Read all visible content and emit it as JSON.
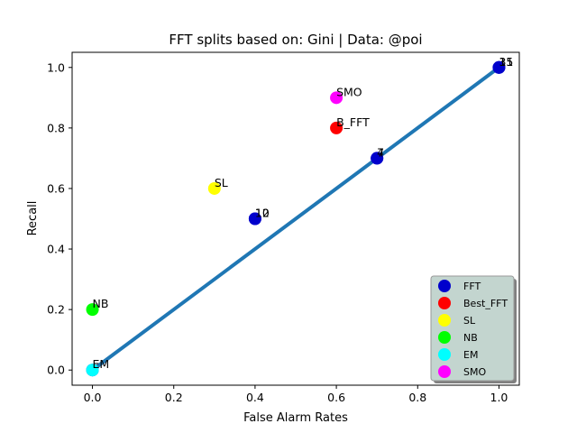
{
  "chart_data": {
    "type": "scatter",
    "title": "FFT splits based on: Gini  |  Data: @poi",
    "xlabel": "False Alarm Rates",
    "ylabel": "Recall",
    "xlim": [
      -0.05,
      1.05
    ],
    "ylim": [
      -0.05,
      1.05
    ],
    "x_ticks": [
      "0.0",
      "0.2",
      "0.4",
      "0.6",
      "0.8",
      "1.0"
    ],
    "y_ticks": [
      "0.0",
      "0.2",
      "0.4",
      "0.6",
      "0.8",
      "1.0"
    ],
    "grid": false,
    "line": {
      "x": [
        0,
        1
      ],
      "y": [
        0,
        1
      ],
      "color": "#1f77b4"
    },
    "series": [
      {
        "name": "FFT",
        "color": "#0000cc",
        "points": [
          {
            "x": 0.0,
            "y": 0.0,
            "label": ""
          },
          {
            "x": 0.4,
            "y": 0.5,
            "label": "10"
          },
          {
            "x": 0.4,
            "y": 0.5,
            "label": "12"
          },
          {
            "x": 0.7,
            "y": 0.7,
            "label": "4"
          },
          {
            "x": 0.7,
            "y": 0.7,
            "label": "7"
          },
          {
            "x": 1.0,
            "y": 1.0,
            "label": "15"
          },
          {
            "x": 1.0,
            "y": 1.0,
            "label": "11"
          },
          {
            "x": 1.0,
            "y": 1.0,
            "label": "3"
          }
        ]
      },
      {
        "name": "Best_FFT",
        "color": "#ff0000",
        "points": [
          {
            "x": 0.6,
            "y": 0.8,
            "label": "B_FFT"
          }
        ]
      },
      {
        "name": "SL",
        "color": "#ffff00",
        "points": [
          {
            "x": 0.3,
            "y": 0.6,
            "label": "SL"
          }
        ]
      },
      {
        "name": "NB",
        "color": "#00ff00",
        "points": [
          {
            "x": 0.0,
            "y": 0.2,
            "label": "NB"
          }
        ]
      },
      {
        "name": "EM",
        "color": "#00ffff",
        "points": [
          {
            "x": 0.0,
            "y": 0.0,
            "label": "EM"
          }
        ]
      },
      {
        "name": "SMO",
        "color": "#ff00ff",
        "points": [
          {
            "x": 0.6,
            "y": 0.9,
            "label": "SMO"
          }
        ]
      }
    ],
    "legend_position": "bottom-right"
  }
}
